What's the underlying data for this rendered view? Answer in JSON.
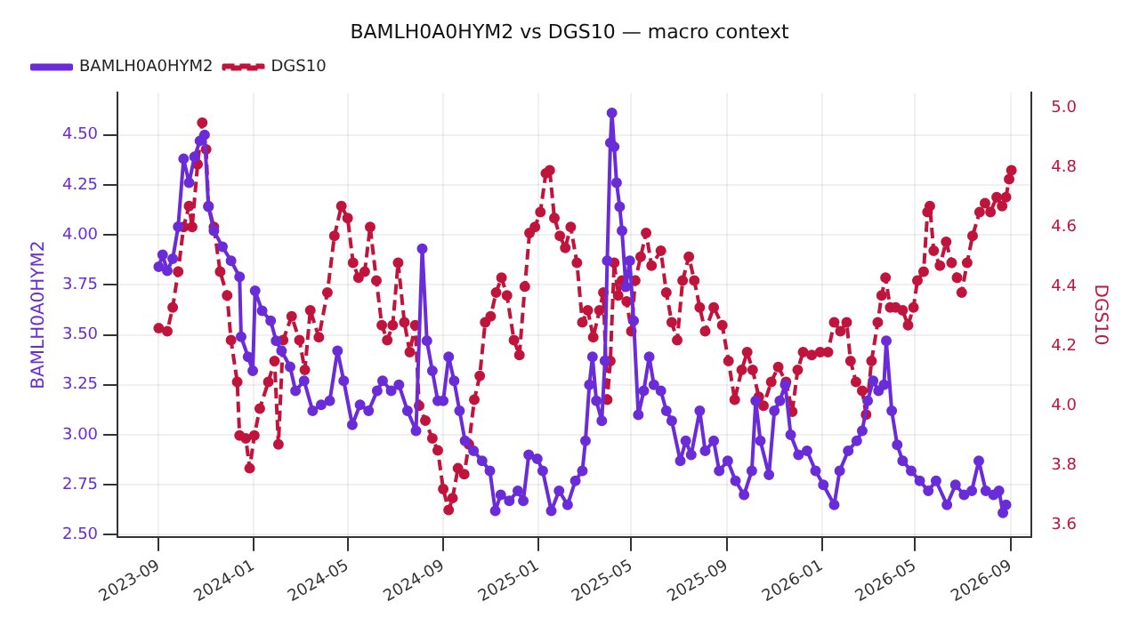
{
  "chart_data": {
    "type": "line",
    "title": "BAMLH0A0HYM2 vs DGS10 — macro context",
    "ylabel": "BAMLH0A0HYM2",
    "y2label": "DGS10",
    "xlim": [
      "2023-07-10",
      "2026-09-28"
    ],
    "xticks": [
      "2023-09",
      "2024-01",
      "2024-05",
      "2024-09",
      "2025-01",
      "2025-05",
      "2025-09",
      "2026-01",
      "2026-05",
      "2026-09"
    ],
    "ylim": [
      2.49,
      4.71
    ],
    "yticks": [
      {
        "value": 2.5,
        "label": "2.50"
      },
      {
        "value": 2.75,
        "label": "2.75"
      },
      {
        "value": 3,
        "label": "3.00"
      },
      {
        "value": 3.25,
        "label": "3.25"
      },
      {
        "value": 3.5,
        "label": "3.50"
      },
      {
        "value": 3.75,
        "label": "3.75"
      },
      {
        "value": 4,
        "label": "4.00"
      },
      {
        "value": 4.25,
        "label": "4.25"
      },
      {
        "value": 4.5,
        "label": "4.50"
      }
    ],
    "y2lim": [
      3.56,
      5.05
    ],
    "y2ticks": [
      3.6,
      3.8,
      {
        "value": 4,
        "label": "4.0"
      },
      4.2,
      4.4,
      4.6,
      4.8,
      {
        "value": 5,
        "label": "5.0"
      }
    ],
    "grid": true,
    "legend": "top left",
    "marker": "circle",
    "series": [
      {
        "name": "BAMLH0A0HYM2",
        "color": "#6a2bd9",
        "line_style": "solid",
        "x": [
          "2023-09-01",
          "2023-09-06",
          "2023-09-12",
          "2023-09-19",
          "2023-09-26",
          "2023-10-03",
          "2023-10-10",
          "2023-10-17",
          "2023-10-24",
          "2023-10-30",
          "2023-11-04",
          "2023-11-11",
          "2023-11-22",
          "2023-12-03",
          "2023-12-14",
          "2023-12-16",
          "2023-12-25",
          "2023-12-31",
          "2024-01-03",
          "2024-01-12",
          "2024-01-23",
          "2024-01-30",
          "2024-02-06",
          "2024-02-17",
          "2024-02-24",
          "2024-03-06",
          "2024-03-17",
          "2024-03-28",
          "2024-04-08",
          "2024-04-18",
          "2024-04-26",
          "2024-05-07",
          "2024-05-17",
          "2024-05-28",
          "2024-06-08",
          "2024-06-15",
          "2024-06-26",
          "2024-07-06",
          "2024-07-17",
          "2024-07-28",
          "2024-08-05",
          "2024-08-11",
          "2024-08-18",
          "2024-08-25",
          "2024-09-01",
          "2024-09-08",
          "2024-09-15",
          "2024-09-22",
          "2024-09-29",
          "2024-10-10",
          "2024-10-21",
          "2024-10-31",
          "2024-11-07",
          "2024-11-14",
          "2024-11-25",
          "2024-12-06",
          "2024-12-13",
          "2024-12-20",
          "2024-12-31",
          "2025-01-07",
          "2025-01-18",
          "2025-01-28",
          "2025-02-08",
          "2025-02-18",
          "2025-02-27",
          "2025-03-03",
          "2025-03-08",
          "2025-03-12",
          "2025-03-17",
          "2025-03-24",
          "2025-03-28",
          "2025-03-31",
          "2025-04-04",
          "2025-04-06",
          "2025-04-09",
          "2025-04-12",
          "2025-04-16",
          "2025-04-19",
          "2025-04-24",
          "2025-04-29",
          "2025-05-04",
          "2025-05-10",
          "2025-05-17",
          "2025-05-24",
          "2025-05-30",
          "2025-06-08",
          "2025-06-15",
          "2025-06-22",
          "2025-07-03",
          "2025-07-10",
          "2025-07-17",
          "2025-07-28",
          "2025-08-04",
          "2025-08-15",
          "2025-08-22",
          "2025-09-02",
          "2025-09-12",
          "2025-09-23",
          "2025-10-03",
          "2025-10-08",
          "2025-10-14",
          "2025-10-25",
          "2025-11-01",
          "2025-11-08",
          "2025-11-15",
          "2025-11-22",
          "2025-12-02",
          "2025-12-13",
          "2025-12-24",
          "2026-01-03",
          "2026-01-17",
          "2026-01-24",
          "2026-02-04",
          "2026-02-15",
          "2026-02-22",
          "2026-03-01",
          "2026-03-08",
          "2026-03-15",
          "2026-03-22",
          "2026-03-25",
          "2026-04-01",
          "2026-04-08",
          "2026-04-15",
          "2026-04-26",
          "2026-05-07",
          "2026-05-18",
          "2026-05-28",
          "2026-06-11",
          "2026-06-22",
          "2026-07-03",
          "2026-07-13",
          "2026-07-22",
          "2026-07-31",
          "2026-08-10",
          "2026-08-17",
          "2026-08-22",
          "2026-08-26"
        ],
        "values": [
          3.84,
          3.9,
          3.82,
          3.88,
          4.04,
          4.38,
          4.26,
          4.39,
          4.47,
          4.5,
          4.14,
          4.02,
          3.94,
          3.87,
          3.79,
          3.49,
          3.39,
          3.32,
          3.72,
          3.62,
          3.57,
          3.47,
          3.42,
          3.34,
          3.22,
          3.27,
          3.12,
          3.15,
          3.17,
          3.42,
          3.27,
          3.05,
          3.15,
          3.12,
          3.22,
          3.27,
          3.22,
          3.25,
          3.12,
          3.02,
          3.93,
          3.47,
          3.32,
          3.17,
          3.17,
          3.39,
          3.27,
          3.12,
          2.97,
          2.92,
          2.87,
          2.82,
          2.62,
          2.7,
          2.67,
          2.72,
          2.67,
          2.9,
          2.88,
          2.82,
          2.62,
          2.72,
          2.65,
          2.77,
          2.82,
          2.97,
          3.25,
          3.39,
          3.17,
          3.07,
          3.37,
          3.87,
          4.46,
          4.61,
          4.44,
          4.26,
          4.14,
          4.02,
          3.74,
          3.87,
          3.57,
          3.1,
          3.22,
          3.39,
          3.25,
          3.22,
          3.12,
          3.07,
          2.87,
          2.97,
          2.9,
          3.12,
          2.92,
          2.97,
          2.82,
          2.87,
          2.77,
          2.7,
          2.82,
          3.17,
          2.97,
          2.8,
          3.12,
          3.17,
          3.25,
          3.0,
          2.9,
          2.92,
          2.82,
          2.75,
          2.65,
          2.82,
          2.92,
          2.97,
          3.02,
          3.17,
          3.27,
          3.22,
          3.25,
          3.47,
          3.12,
          2.95,
          2.87,
          2.82,
          2.77,
          2.72,
          2.77,
          2.65,
          2.75,
          2.7,
          2.72,
          2.87,
          2.72,
          2.7,
          2.72,
          2.61,
          2.65
        ]
      },
      {
        "name": "DGS10",
        "color": "#c0143c",
        "line_style": "dashed",
        "axis": "y2",
        "x": [
          "2023-09-01",
          "2023-09-12",
          "2023-09-19",
          "2023-09-26",
          "2023-10-03",
          "2023-10-10",
          "2023-10-14",
          "2023-10-21",
          "2023-10-27",
          "2023-11-01",
          "2023-11-04",
          "2023-11-11",
          "2023-11-19",
          "2023-11-28",
          "2023-12-03",
          "2023-12-11",
          "2023-12-14",
          "2023-12-22",
          "2023-12-27",
          "2024-01-02",
          "2024-01-09",
          "2024-01-20",
          "2024-01-28",
          "2024-02-02",
          "2024-02-08",
          "2024-02-19",
          "2024-02-29",
          "2024-03-07",
          "2024-03-14",
          "2024-03-25",
          "2024-04-05",
          "2024-04-14",
          "2024-04-23",
          "2024-05-01",
          "2024-05-08",
          "2024-05-15",
          "2024-05-23",
          "2024-05-30",
          "2024-06-07",
          "2024-06-14",
          "2024-06-21",
          "2024-06-28",
          "2024-07-05",
          "2024-07-13",
          "2024-07-20",
          "2024-07-27",
          "2024-08-01",
          "2024-08-09",
          "2024-08-18",
          "2024-08-25",
          "2024-09-01",
          "2024-09-08",
          "2024-09-13",
          "2024-09-20",
          "2024-09-28",
          "2024-10-04",
          "2024-10-11",
          "2024-10-18",
          "2024-10-25",
          "2024-11-01",
          "2024-11-08",
          "2024-11-15",
          "2024-11-22",
          "2024-12-01",
          "2024-12-08",
          "2024-12-15",
          "2024-12-21",
          "2024-12-28",
          "2025-01-04",
          "2025-01-11",
          "2025-01-16",
          "2025-01-22",
          "2025-01-29",
          "2025-02-05",
          "2025-02-12",
          "2025-02-20",
          "2025-02-27",
          "2025-03-06",
          "2025-03-13",
          "2025-03-21",
          "2025-03-26",
          "2025-03-31",
          "2025-04-04",
          "2025-04-09",
          "2025-04-14",
          "2025-04-19",
          "2025-04-25",
          "2025-05-01",
          "2025-05-06",
          "2025-05-13",
          "2025-05-20",
          "2025-05-27",
          "2025-06-08",
          "2025-06-15",
          "2025-06-22",
          "2025-06-29",
          "2025-07-06",
          "2025-07-14",
          "2025-07-21",
          "2025-07-28",
          "2025-08-04",
          "2025-08-15",
          "2025-08-26",
          "2025-09-03",
          "2025-09-11",
          "2025-09-20",
          "2025-09-27",
          "2025-10-04",
          "2025-10-12",
          "2025-10-18",
          "2025-10-28",
          "2025-11-06",
          "2025-11-16",
          "2025-11-24",
          "2025-12-01",
          "2025-12-08",
          "2025-12-19",
          "2025-12-30",
          "2026-01-09",
          "2026-01-17",
          "2026-01-25",
          "2026-02-02",
          "2026-02-07",
          "2026-02-14",
          "2026-02-22",
          "2026-02-27",
          "2026-03-06",
          "2026-03-14",
          "2026-03-19",
          "2026-03-24",
          "2026-03-30",
          "2026-04-06",
          "2026-04-15",
          "2026-04-22",
          "2026-04-29",
          "2026-05-04",
          "2026-05-12",
          "2026-05-17",
          "2026-05-20",
          "2026-05-25",
          "2026-06-02",
          "2026-06-10",
          "2026-06-17",
          "2026-06-24",
          "2026-06-30",
          "2026-07-07",
          "2026-07-14",
          "2026-07-23",
          "2026-07-30",
          "2026-08-06",
          "2026-08-14",
          "2026-08-21",
          "2026-08-26",
          "2026-08-30",
          "2026-09-02"
        ],
        "values": [
          4.26,
          4.25,
          4.33,
          4.45,
          4.6,
          4.67,
          4.6,
          4.81,
          4.95,
          4.86,
          4.67,
          4.6,
          4.45,
          4.37,
          4.22,
          4.08,
          3.9,
          3.89,
          3.79,
          3.9,
          3.99,
          4.08,
          4.15,
          3.87,
          4.22,
          4.3,
          4.22,
          4.12,
          4.32,
          4.23,
          4.38,
          4.57,
          4.67,
          4.63,
          4.48,
          4.43,
          4.45,
          4.6,
          4.42,
          4.27,
          4.22,
          4.27,
          4.48,
          4.28,
          4.18,
          4.27,
          4.0,
          3.95,
          3.89,
          3.85,
          3.72,
          3.65,
          3.69,
          3.79,
          3.77,
          3.87,
          4.02,
          4.1,
          4.28,
          4.3,
          4.38,
          4.43,
          4.37,
          4.22,
          4.17,
          4.4,
          4.58,
          4.6,
          4.65,
          4.78,
          4.79,
          4.63,
          4.57,
          4.53,
          4.6,
          4.48,
          4.28,
          4.32,
          4.23,
          4.32,
          4.38,
          4.02,
          4.15,
          4.48,
          4.37,
          4.42,
          4.35,
          4.25,
          4.42,
          4.5,
          4.58,
          4.47,
          4.52,
          4.38,
          4.28,
          4.22,
          4.42,
          4.5,
          4.42,
          4.33,
          4.25,
          4.33,
          4.27,
          4.15,
          4.02,
          4.12,
          4.18,
          4.12,
          4.03,
          4.0,
          4.08,
          4.13,
          4.08,
          3.98,
          4.12,
          4.18,
          4.17,
          4.18,
          4.18,
          4.28,
          4.25,
          4.28,
          4.15,
          4.08,
          4.05,
          3.97,
          4.15,
          4.28,
          4.37,
          4.43,
          4.33,
          4.33,
          4.32,
          4.27,
          4.33,
          4.42,
          4.45,
          4.65,
          4.67,
          4.52,
          4.47,
          4.55,
          4.48,
          4.43,
          4.38,
          4.48,
          4.57,
          4.65,
          4.68,
          4.65,
          4.7,
          4.67,
          4.7,
          4.76,
          4.79
        ]
      }
    ]
  }
}
